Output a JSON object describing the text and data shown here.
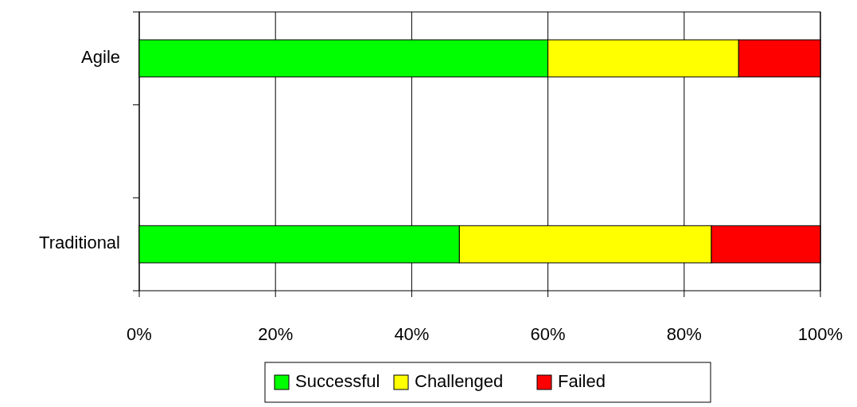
{
  "chart_data": {
    "type": "bar",
    "orientation": "horizontal",
    "stacked": true,
    "categories": [
      "Agile",
      null,
      "Traditional"
    ],
    "series": [
      {
        "name": "Successful",
        "color": "#00ff00",
        "values": [
          60,
          null,
          47
        ]
      },
      {
        "name": "Challenged",
        "color": "#ffff00",
        "values": [
          28,
          null,
          37
        ]
      },
      {
        "name": "Failed",
        "color": "#ff0000",
        "values": [
          12,
          null,
          16
        ]
      }
    ],
    "xlim": [
      0,
      100
    ],
    "xticks": [
      {
        "value": 0,
        "label": "0%"
      },
      {
        "value": 20,
        "label": "20%"
      },
      {
        "value": 40,
        "label": "40%"
      },
      {
        "value": 60,
        "label": "60%"
      },
      {
        "value": 80,
        "label": "80%"
      },
      {
        "value": 100,
        "label": "100%"
      }
    ],
    "grid": "x",
    "legend": "bottom"
  }
}
